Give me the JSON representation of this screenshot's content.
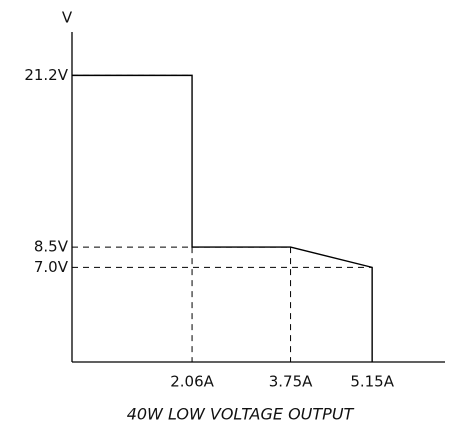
{
  "chart_data": {
    "type": "line",
    "title": "40W LOW VOLTAGE OUTPUT",
    "y_label": "V",
    "series": [
      {
        "color": "#000000",
        "x": [
          0,
          2.06,
          2.06,
          3.75,
          5.15,
          5.15
        ],
        "values": [
          21.2,
          21.2,
          8.5,
          8.5,
          7.0,
          0
        ]
      }
    ],
    "xlim": [
      0,
      6.4
    ],
    "ylim": [
      0,
      25
    ],
    "xticks": [
      {
        "value": 2.06,
        "label": "2.06A"
      },
      {
        "value": 3.75,
        "label": "3.75A"
      },
      {
        "value": 5.15,
        "label": "5.15A"
      }
    ],
    "yticks": [
      {
        "value": 21.2,
        "label": "21.2V"
      },
      {
        "value": 8.5,
        "label": "8.5V"
      },
      {
        "value": 7.0,
        "label": "7.0V"
      }
    ]
  }
}
